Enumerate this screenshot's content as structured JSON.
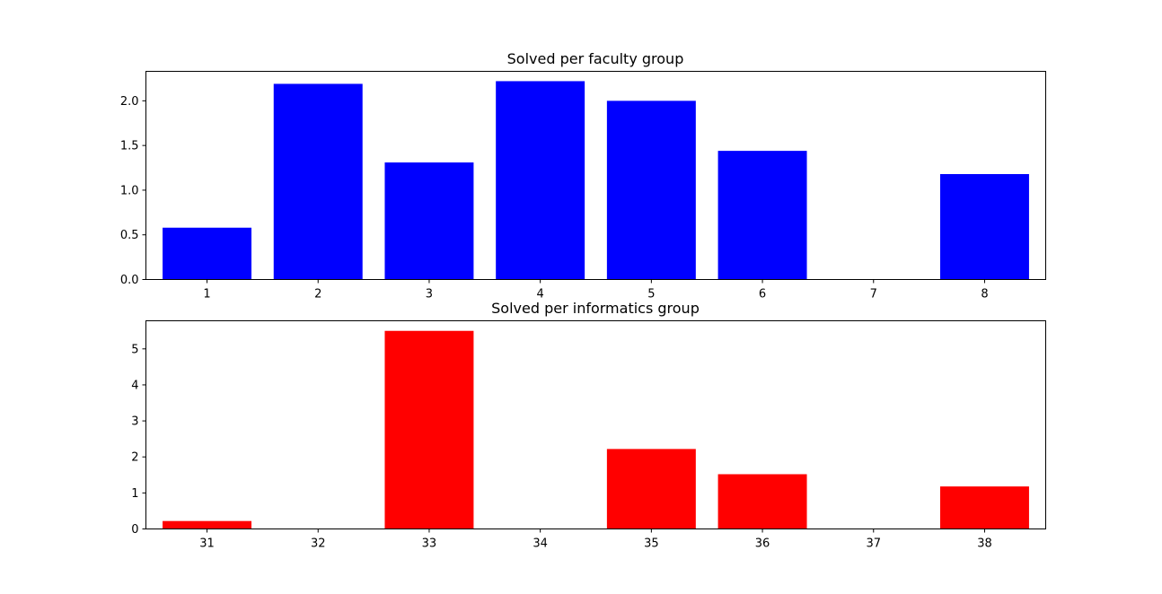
{
  "chart_data": [
    {
      "type": "bar",
      "title": "Solved per faculty group",
      "xlabel": "",
      "ylabel": "",
      "categories": [
        "1",
        "2",
        "3",
        "4",
        "5",
        "6",
        "7",
        "8"
      ],
      "values": [
        0.58,
        2.19,
        1.31,
        2.22,
        2.0,
        1.44,
        0,
        1.18
      ],
      "ylim": [
        0,
        2.33
      ],
      "yticks": [
        "0.0",
        "0.5",
        "1.0",
        "1.5",
        "2.0"
      ],
      "color": "#0000ff",
      "grid": false,
      "legend": "none"
    },
    {
      "type": "bar",
      "title": "Solved per informatics group",
      "xlabel": "",
      "ylabel": "",
      "categories": [
        "31",
        "32",
        "33",
        "34",
        "35",
        "36",
        "37",
        "38"
      ],
      "values": [
        0.22,
        0,
        5.5,
        0,
        2.22,
        1.52,
        0,
        1.18
      ],
      "ylim": [
        0,
        5.78
      ],
      "yticks": [
        "0",
        "1",
        "2",
        "3",
        "4",
        "5"
      ],
      "color": "#ff0000",
      "grid": false,
      "legend": "none"
    }
  ]
}
